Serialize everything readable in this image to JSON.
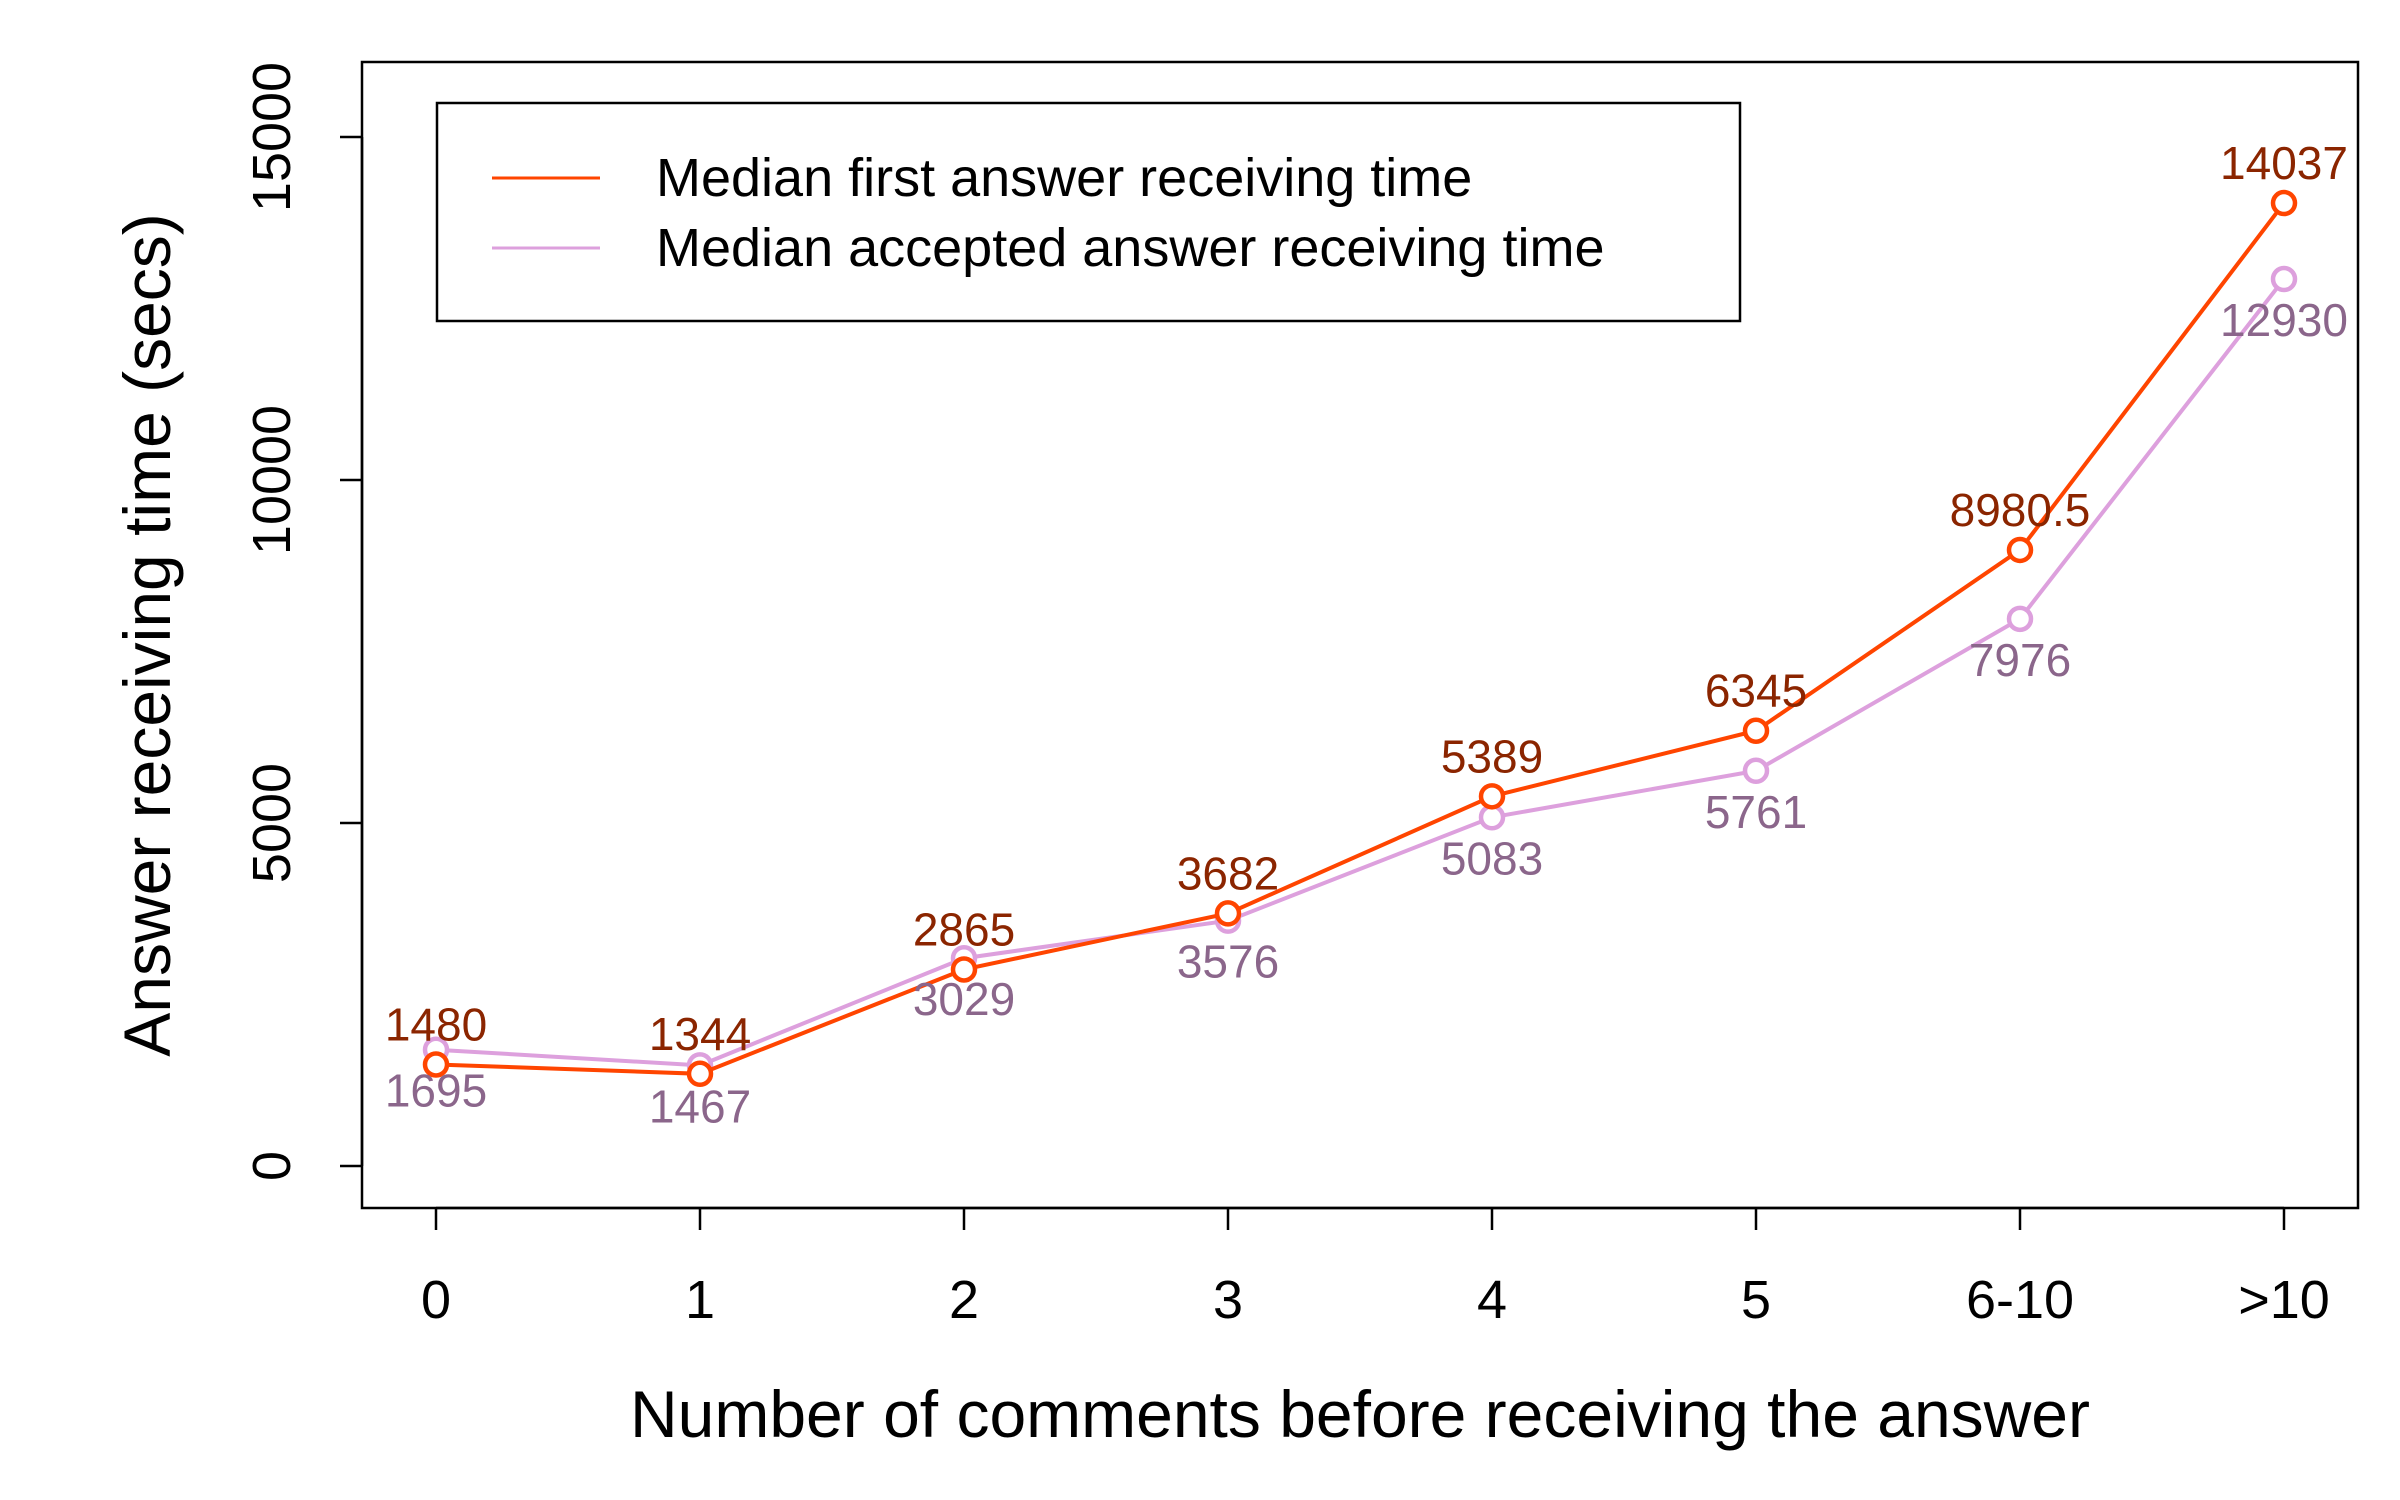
{
  "chart_data": {
    "type": "line",
    "title": "",
    "xlabel": "Number of comments before receiving the answer",
    "ylabel": "Answer receiving time (secs)",
    "categories": [
      "0",
      "1",
      "2",
      "3",
      "4",
      "5",
      "6-10",
      ">10"
    ],
    "yticks": [
      "0",
      "5000",
      "10000",
      "15000"
    ],
    "ylim": [
      -600,
      16200
    ],
    "grid": false,
    "legend_position": "top-left",
    "series": [
      {
        "name": "Median first answer receiving time",
        "color": "#ff4500",
        "label_color": "#8b2500",
        "values": [
          1480,
          1344,
          2865,
          3682,
          5389,
          6345,
          8980.5,
          14037
        ],
        "labels": [
          "1480",
          "1344",
          "2865",
          "3682",
          "5389",
          "6345",
          "8980.5",
          "14037"
        ]
      },
      {
        "name": "Median accepted answer receiving time",
        "color": "#dda0dd",
        "label_color": "#8b668b",
        "values": [
          1695,
          1467,
          3029,
          3576,
          5083,
          5761,
          7976,
          12930
        ],
        "labels": [
          "1695",
          "1467",
          "3029",
          "3576",
          "5083",
          "5761",
          "7976",
          "12930"
        ]
      }
    ]
  }
}
